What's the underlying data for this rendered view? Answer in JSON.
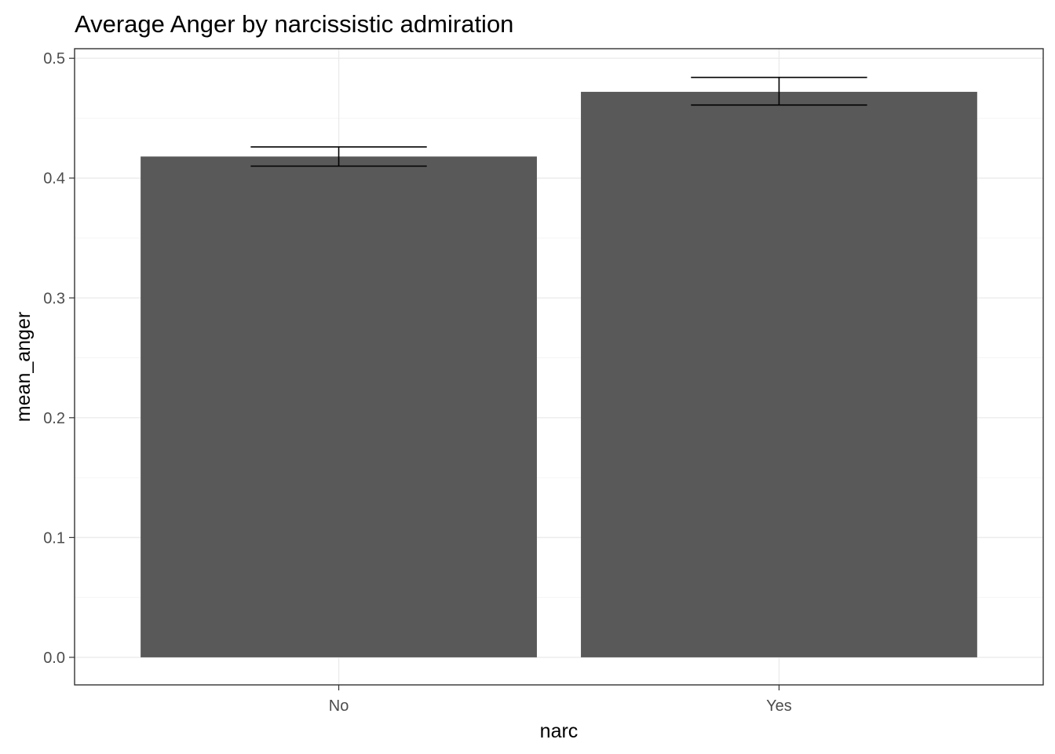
{
  "chart_data": {
    "type": "bar",
    "title": "Average Anger by narcissistic admiration",
    "xlabel": "narc",
    "ylabel": "mean_anger",
    "categories": [
      "No",
      "Yes"
    ],
    "values": [
      0.418,
      0.472
    ],
    "error_bars": [
      {
        "low": 0.41,
        "high": 0.426
      },
      {
        "low": 0.461,
        "high": 0.484
      }
    ],
    "ylim": [
      -0.023,
      0.508
    ],
    "yticks": [
      0.0,
      0.1,
      0.2,
      0.3,
      0.4,
      0.5
    ],
    "ytick_labels": [
      "0.0",
      "0.1",
      "0.2",
      "0.3",
      "0.4",
      "0.5"
    ],
    "grid": true,
    "legend": "none",
    "colors": {
      "bar": "#595959",
      "errorbar": "#000000",
      "grid": "#ebebeb"
    }
  }
}
